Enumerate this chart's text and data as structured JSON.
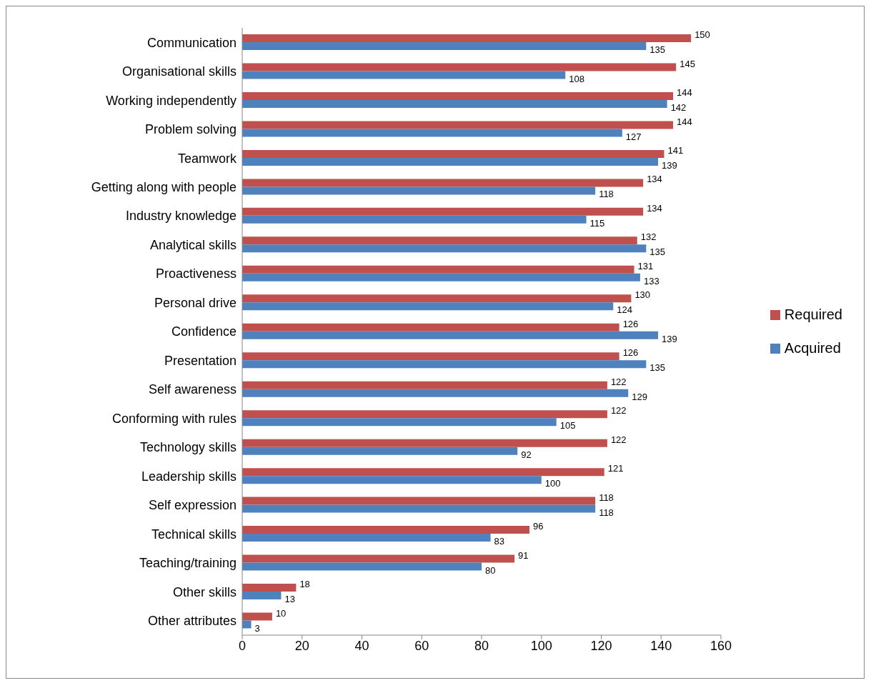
{
  "chart_data": {
    "type": "bar",
    "orientation": "horizontal",
    "categories": [
      "Communication",
      "Organisational skills",
      "Working independently",
      "Problem solving",
      "Teamwork",
      "Getting along with people",
      "Industry knowledge",
      "Analytical skills",
      "Proactiveness",
      "Personal drive",
      "Confidence",
      "Presentation",
      "Self awareness",
      "Conforming with rules",
      "Technology skills",
      "Leadership skills",
      "Self expression",
      "Technical skills",
      "Teaching/training",
      "Other skills",
      "Other attributes"
    ],
    "series": [
      {
        "name": "Required",
        "color": "#c0504d",
        "values": [
          150,
          145,
          144,
          144,
          141,
          134,
          134,
          132,
          131,
          130,
          126,
          126,
          122,
          122,
          122,
          121,
          118,
          96,
          91,
          18,
          10
        ]
      },
      {
        "name": "Acquired",
        "color": "#4f81bd",
        "values": [
          135,
          108,
          142,
          127,
          139,
          118,
          115,
          135,
          133,
          124,
          139,
          135,
          129,
          105,
          92,
          100,
          118,
          83,
          80,
          13,
          3
        ]
      }
    ],
    "xlim": [
      0,
      160
    ],
    "xticks": [
      0,
      20,
      40,
      60,
      80,
      100,
      120,
      140,
      160
    ],
    "grid": false,
    "legend": "right",
    "data_labels": true
  }
}
